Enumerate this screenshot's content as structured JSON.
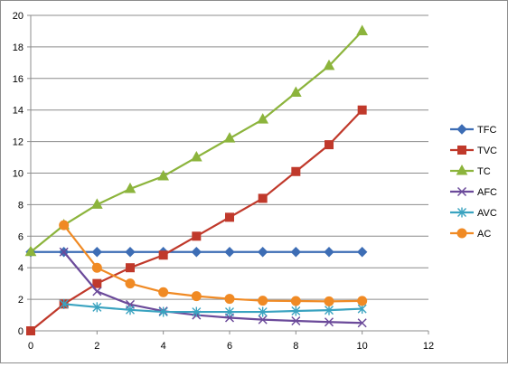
{
  "chart_data": {
    "type": "line",
    "title": "",
    "xlabel": "",
    "ylabel": "",
    "xlim": [
      0,
      12
    ],
    "ylim": [
      0,
      20
    ],
    "x_ticks": [
      0,
      2,
      4,
      6,
      8,
      10,
      12
    ],
    "y_ticks": [
      0,
      2,
      4,
      6,
      8,
      10,
      12,
      14,
      16,
      18,
      20
    ],
    "grid": "horizontal",
    "legend_position": "right",
    "series": [
      {
        "name": "TFC",
        "color": "#3d6db5",
        "marker": "diamond",
        "points": [
          [
            0,
            5
          ],
          [
            1,
            5
          ],
          [
            2,
            5
          ],
          [
            3,
            5
          ],
          [
            4,
            5
          ],
          [
            5,
            5
          ],
          [
            6,
            5
          ],
          [
            7,
            5
          ],
          [
            8,
            5
          ],
          [
            9,
            5
          ],
          [
            10,
            5
          ]
        ]
      },
      {
        "name": "TVC",
        "color": "#c0392b",
        "marker": "square",
        "points": [
          [
            0,
            0
          ],
          [
            1,
            1.7
          ],
          [
            2,
            3
          ],
          [
            3,
            4
          ],
          [
            4,
            4.8
          ],
          [
            5,
            6
          ],
          [
            6,
            7.2
          ],
          [
            7,
            8.4
          ],
          [
            8,
            10.1
          ],
          [
            9,
            11.8
          ],
          [
            10,
            14
          ]
        ]
      },
      {
        "name": "TC",
        "color": "#8cb43c",
        "marker": "triangle",
        "points": [
          [
            0,
            5
          ],
          [
            1,
            6.7
          ],
          [
            2,
            8
          ],
          [
            3,
            9
          ],
          [
            4,
            9.8
          ],
          [
            5,
            11
          ],
          [
            6,
            12.2
          ],
          [
            7,
            13.4
          ],
          [
            8,
            15.1
          ],
          [
            9,
            16.8
          ],
          [
            10,
            19
          ]
        ]
      },
      {
        "name": "AFC",
        "color": "#6b4a9a",
        "marker": "x",
        "points": [
          [
            1,
            5
          ],
          [
            2,
            2.5
          ],
          [
            3,
            1.67
          ],
          [
            4,
            1.25
          ],
          [
            5,
            1
          ],
          [
            6,
            0.83
          ],
          [
            7,
            0.71
          ],
          [
            8,
            0.63
          ],
          [
            9,
            0.56
          ],
          [
            10,
            0.5
          ]
        ]
      },
      {
        "name": "AVC",
        "color": "#3aa3c0",
        "marker": "star",
        "points": [
          [
            1,
            1.7
          ],
          [
            2,
            1.5
          ],
          [
            3,
            1.33
          ],
          [
            4,
            1.2
          ],
          [
            5,
            1.2
          ],
          [
            6,
            1.2
          ],
          [
            7,
            1.2
          ],
          [
            8,
            1.26
          ],
          [
            9,
            1.31
          ],
          [
            10,
            1.4
          ]
        ]
      },
      {
        "name": "AC",
        "color": "#f08a24",
        "marker": "circle",
        "points": [
          [
            1,
            6.7
          ],
          [
            2,
            4
          ],
          [
            3,
            3
          ],
          [
            4,
            2.45
          ],
          [
            5,
            2.2
          ],
          [
            6,
            2.03
          ],
          [
            7,
            1.91
          ],
          [
            8,
            1.89
          ],
          [
            9,
            1.87
          ],
          [
            10,
            1.9
          ]
        ]
      }
    ]
  }
}
